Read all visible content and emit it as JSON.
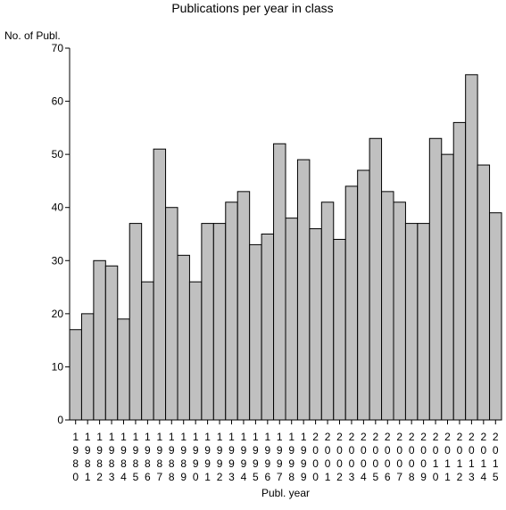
{
  "chart_data": {
    "type": "bar",
    "title": "Publications per year in class",
    "ylabel": "No. of Publ.",
    "xlabel": "Publ. year",
    "ylim": [
      0,
      70
    ],
    "yticks": [
      0,
      10,
      20,
      30,
      40,
      50,
      60,
      70
    ],
    "grid": false,
    "legend": "none",
    "bar_color": "#c0c0c0",
    "categories": [
      "1980",
      "1981",
      "1982",
      "1983",
      "1984",
      "1985",
      "1986",
      "1987",
      "1988",
      "1989",
      "1990",
      "1991",
      "1992",
      "1993",
      "1994",
      "1995",
      "1996",
      "1997",
      "1998",
      "1999",
      "2000",
      "2001",
      "2002",
      "2003",
      "2004",
      "2005",
      "2006",
      "2007",
      "2008",
      "2009",
      "2010",
      "2011",
      "2012",
      "2013",
      "2014",
      "2015"
    ],
    "values": [
      17,
      20,
      30,
      29,
      19,
      37,
      26,
      51,
      40,
      31,
      26,
      37,
      37,
      41,
      43,
      33,
      35,
      52,
      38,
      49,
      36,
      41,
      34,
      44,
      47,
      53,
      43,
      41,
      37,
      37,
      53,
      50,
      56,
      65,
      48,
      39
    ]
  }
}
